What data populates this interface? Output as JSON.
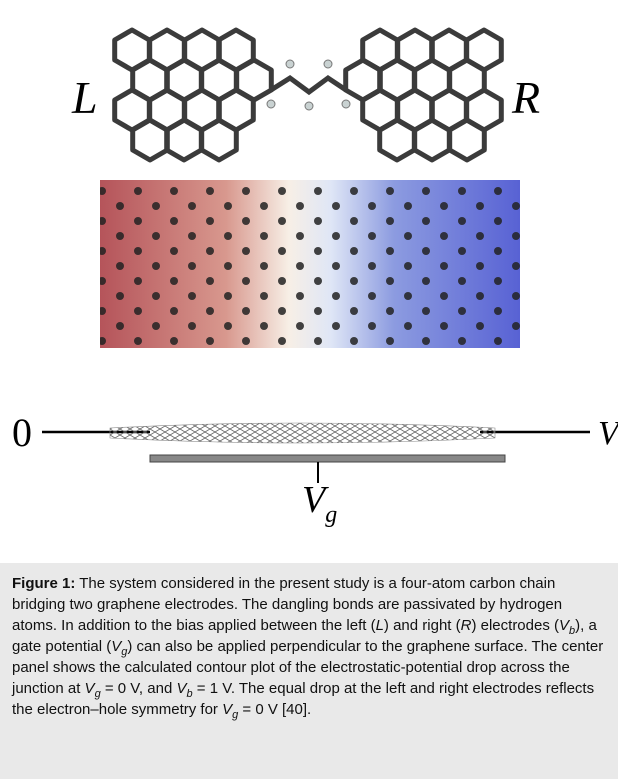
{
  "figure": {
    "labels": {
      "left": "L",
      "right": "R",
      "ground": "0",
      "bias": {
        "symbol": "V",
        "subscript": "b"
      },
      "gate": {
        "symbol": "V",
        "subscript": "g"
      }
    },
    "caption": {
      "label": "Figure 1:",
      "runs": [
        " The system considered in the present study is a four-atom carbon chain bridging two graphene electrodes. The dangling bonds are passivated by hydrogen atoms. In addition to the bias applied between the left (",
        "L",
        ") and right (",
        "R",
        ") electrodes (",
        "V",
        "b",
        "), a gate potential (",
        "V",
        "g",
        ") can also be applied perpendicular to the graphene surface. The center panel shows the calculated contour plot of the electrostatic-potential drop across the junction at ",
        "V",
        "g",
        " = 0 V, and ",
        "V",
        "b",
        " = 1 V. The equal drop at the left and right electrodes reflects the electron–hole symmetry for ",
        "V",
        "g",
        " = 0 V [40]."
      ]
    }
  }
}
